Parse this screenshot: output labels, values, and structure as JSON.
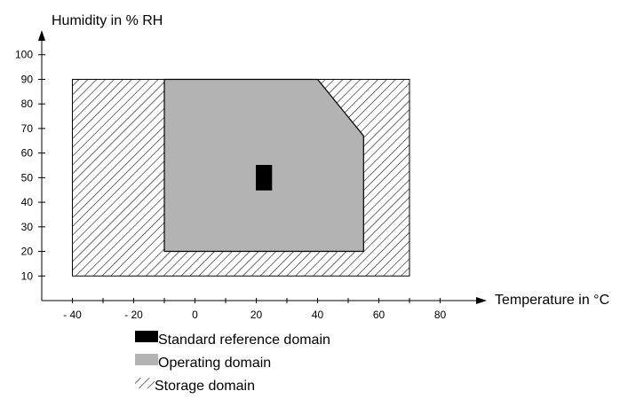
{
  "chart_data": {
    "type": "area",
    "xlabel": "Temperature in °C",
    "ylabel": "Humidity in % RH",
    "xlim": [
      -50,
      90
    ],
    "ylim": [
      0,
      110
    ],
    "x_ticks": [
      -40,
      -20,
      0,
      20,
      40,
      60,
      80
    ],
    "x_tick_labels": [
      "- 40",
      "- 20",
      "0",
      "20",
      "40",
      "60",
      "80"
    ],
    "x_minor_ticks": [
      -30,
      -10,
      10,
      30,
      50,
      70
    ],
    "y_ticks": [
      10,
      20,
      30,
      40,
      50,
      60,
      70,
      80,
      90,
      100
    ],
    "y_tick_labels": [
      "10",
      "20",
      "30",
      "40",
      "50",
      "60",
      "70",
      "80",
      "90",
      "100"
    ],
    "grid": false,
    "legend_position": "bottom",
    "series": [
      {
        "name": "Storage domain",
        "style": "hatched",
        "color": "#000000",
        "polygon": [
          [
            -40,
            10
          ],
          [
            70,
            10
          ],
          [
            70,
            90
          ],
          [
            -40,
            90
          ]
        ]
      },
      {
        "name": "Operating domain",
        "style": "solid",
        "color": "#b3b3b3",
        "polygon": [
          [
            -10,
            20
          ],
          [
            55,
            20
          ],
          [
            55,
            67
          ],
          [
            40,
            90
          ],
          [
            -10,
            90
          ]
        ]
      },
      {
        "name": "Standard reference domain",
        "style": "solid",
        "color": "#000000",
        "polygon": [
          [
            20,
            45
          ],
          [
            25,
            45
          ],
          [
            25,
            55
          ],
          [
            20,
            55
          ]
        ]
      }
    ]
  }
}
